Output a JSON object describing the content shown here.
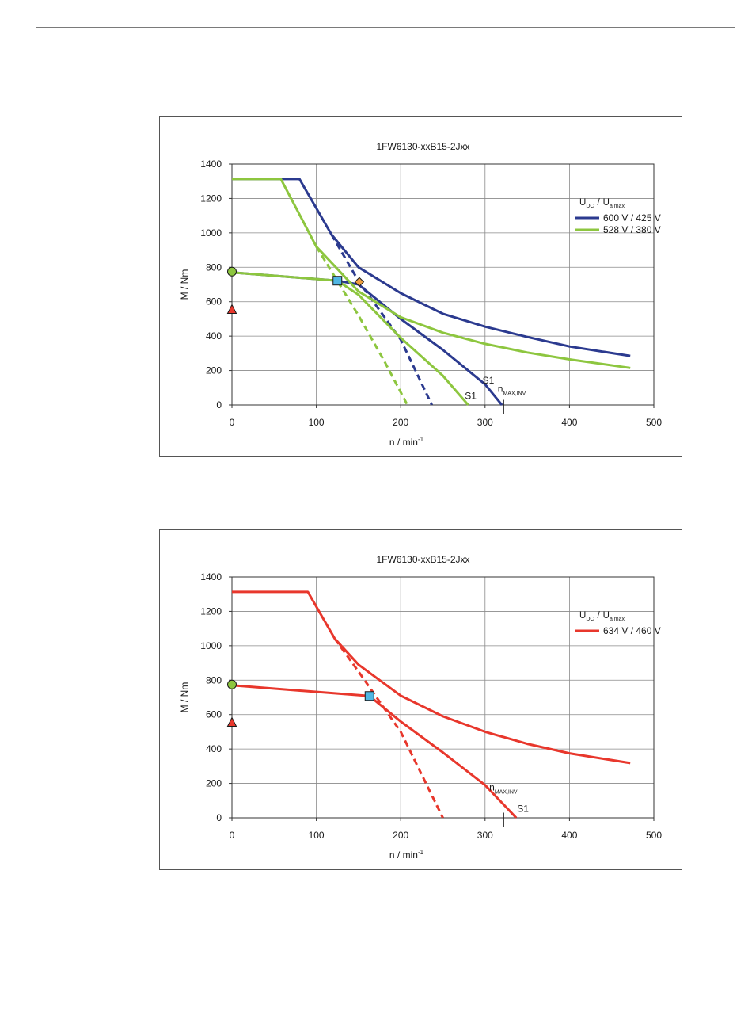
{
  "chart_data": [
    {
      "type": "line",
      "title": "1FW6130-xxB15-2Jxx",
      "xlabel": "n / min",
      "xlabel_sup": "-1",
      "ylabel": "M / Nm",
      "xlim": [
        0,
        500
      ],
      "ylim": [
        0,
        1400
      ],
      "xticks": [
        0,
        100,
        200,
        300,
        400,
        500
      ],
      "yticks": [
        0,
        200,
        400,
        600,
        800,
        1000,
        1200,
        1400
      ],
      "grid": true,
      "legend_title": {
        "u": "U",
        "u_sub": "DC",
        "sep": "/",
        "ua": "U",
        "ua_sub": "a max"
      },
      "legend_position": "top-right",
      "series": [
        {
          "name": "600 V / 425 V",
          "color": "#2b3a8f",
          "legend": true,
          "style": "solid",
          "x": [
            0,
            80,
            118,
            150,
            200,
            250,
            300,
            350,
            400,
            472
          ],
          "y": [
            1313,
            1313,
            990,
            800,
            650,
            530,
            455,
            395,
            340,
            285
          ]
        },
        {
          "name": "600 V / 425 V S1",
          "color": "#2b3a8f",
          "legend": false,
          "style": "solid",
          "x": [
            0,
            125,
            150,
            200,
            250,
            300,
            320
          ],
          "y": [
            770,
            722,
            700,
            500,
            320,
            120,
            0
          ]
        },
        {
          "name": "600 V / 425 V dashed",
          "color": "#2b3a8f",
          "legend": false,
          "style": "dashed",
          "x": [
            118,
            150,
            200,
            237
          ],
          "y": [
            990,
            720,
            380,
            0
          ]
        },
        {
          "name": "528 V / 380 V",
          "color": "#8dc63f",
          "legend": true,
          "style": "solid",
          "x": [
            0,
            58,
            100,
            150,
            200,
            250,
            300,
            350,
            400,
            472
          ],
          "y": [
            1313,
            1313,
            920,
            660,
            510,
            420,
            355,
            305,
            265,
            215
          ]
        },
        {
          "name": "528 V / 380 V S1",
          "color": "#8dc63f",
          "legend": false,
          "style": "solid",
          "x": [
            0,
            125,
            150,
            200,
            250,
            280
          ],
          "y": [
            770,
            722,
            640,
            390,
            170,
            0
          ]
        },
        {
          "name": "528 V / 380 V dashed",
          "color": "#8dc63f",
          "legend": false,
          "style": "dashed",
          "x": [
            100,
            150,
            180,
            208
          ],
          "y": [
            920,
            520,
            260,
            0
          ]
        }
      ],
      "markers": [
        {
          "shape": "circle",
          "x": 0,
          "y": 775,
          "color": "#8dc63f"
        },
        {
          "shape": "triangle",
          "x": 0,
          "y": 555,
          "color": "#e8372c"
        },
        {
          "shape": "square",
          "x": 125,
          "y": 722,
          "color": "#4fb6e3"
        },
        {
          "shape": "diamond",
          "x": 151,
          "y": 715,
          "color": "#f0a040"
        }
      ],
      "annotations": [
        {
          "text": "S1",
          "x": 297,
          "y": 125
        },
        {
          "text": "S1",
          "x": 276,
          "y": 35
        },
        {
          "text": "n",
          "sub": "MAX,INV",
          "x": 315,
          "y": 75
        }
      ],
      "vline": {
        "x": 322,
        "y_from": -55,
        "y_to": 30
      }
    },
    {
      "type": "line",
      "title": "1FW6130-xxB15-2Jxx",
      "xlabel": "n / min",
      "xlabel_sup": "-1",
      "ylabel": "M / Nm",
      "xlim": [
        0,
        500
      ],
      "ylim": [
        0,
        1400
      ],
      "xticks": [
        0,
        100,
        200,
        300,
        400,
        500
      ],
      "yticks": [
        0,
        200,
        400,
        600,
        800,
        1000,
        1200,
        1400
      ],
      "grid": true,
      "legend_title": {
        "u": "U",
        "u_sub": "DC",
        "sep": "/",
        "ua": "U",
        "ua_sub": "a max"
      },
      "legend_position": "top-right",
      "series": [
        {
          "name": "634 V / 460 V",
          "color": "#e8372c",
          "legend": true,
          "style": "solid",
          "x": [
            0,
            90,
            122,
            150,
            200,
            250,
            300,
            350,
            400,
            472
          ],
          "y": [
            1313,
            1313,
            1040,
            890,
            710,
            590,
            500,
            430,
            375,
            318
          ]
        },
        {
          "name": "634 V / 460 V S1",
          "color": "#e8372c",
          "legend": false,
          "style": "solid",
          "x": [
            0,
            163,
            200,
            250,
            300,
            337
          ],
          "y": [
            770,
            708,
            560,
            380,
            190,
            0
          ]
        },
        {
          "name": "634 V / 460 V dashed",
          "color": "#e8372c",
          "legend": false,
          "style": "dashed",
          "x": [
            122,
            150,
            200,
            250
          ],
          "y": [
            1040,
            850,
            500,
            0
          ]
        }
      ],
      "markers": [
        {
          "shape": "circle",
          "x": 0,
          "y": 775,
          "color": "#8dc63f"
        },
        {
          "shape": "triangle",
          "x": 0,
          "y": 555,
          "color": "#e8372c"
        },
        {
          "shape": "square",
          "x": 163,
          "y": 708,
          "color": "#4fb6e3"
        }
      ],
      "annotations": [
        {
          "text": "n",
          "sub": "MAX,INV",
          "x": 305,
          "y": 158
        },
        {
          "text": "S1",
          "x": 338,
          "y": 35
        }
      ],
      "vline": {
        "x": 322,
        "y_from": -55,
        "y_to": 30
      }
    }
  ]
}
